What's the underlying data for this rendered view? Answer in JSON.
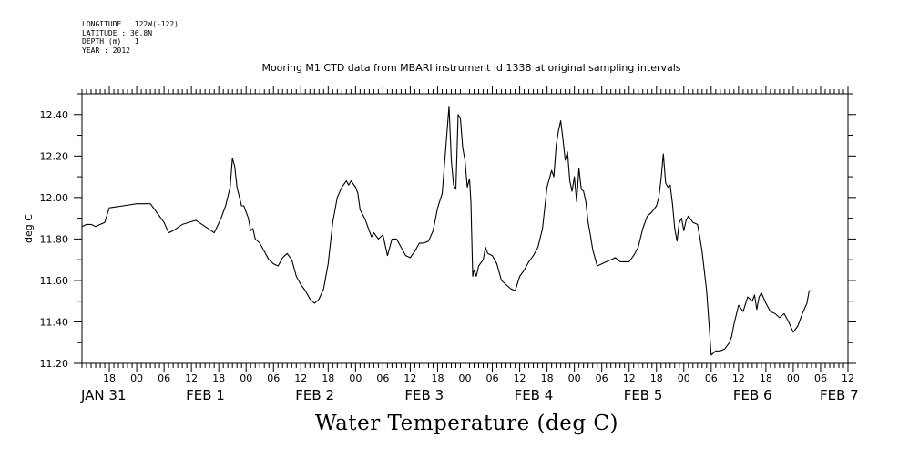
{
  "meta": {
    "longitude": "LONGITUDE : 122W(-122)",
    "latitude": "LATITUDE : 36.8N",
    "depth": "DEPTH (m) : 1",
    "year": "YEAR : 2012"
  },
  "chart_data": {
    "type": "line",
    "title": "Mooring M1 CTD data from MBARI instrument id 1338 at original sampling intervals",
    "xlabel": "",
    "ylabel": "deg C",
    "bottom_title": "Water Temperature (deg C)",
    "x_unit": "hours since JAN 31 12:00",
    "xlim": [
      0,
      168
    ],
    "ylim": [
      11.2,
      12.5
    ],
    "yticks": [
      "11.20",
      "11.40",
      "11.60",
      "11.80",
      "12.00",
      "12.20",
      "12.40"
    ],
    "ytick_values": [
      11.2,
      11.4,
      11.6,
      11.8,
      12.0,
      12.2,
      12.4
    ],
    "hour_ticks": [
      {
        "h": 6,
        "label": "18"
      },
      {
        "h": 12,
        "label": "00"
      },
      {
        "h": 18,
        "label": "06"
      },
      {
        "h": 24,
        "label": "12"
      },
      {
        "h": 30,
        "label": "18"
      },
      {
        "h": 36,
        "label": "00"
      },
      {
        "h": 42,
        "label": "06"
      },
      {
        "h": 48,
        "label": "12"
      },
      {
        "h": 54,
        "label": "18"
      },
      {
        "h": 60,
        "label": "00"
      },
      {
        "h": 66,
        "label": "06"
      },
      {
        "h": 72,
        "label": "12"
      },
      {
        "h": 78,
        "label": "18"
      },
      {
        "h": 84,
        "label": "00"
      },
      {
        "h": 90,
        "label": "06"
      },
      {
        "h": 96,
        "label": "12"
      },
      {
        "h": 102,
        "label": "18"
      },
      {
        "h": 108,
        "label": "00"
      },
      {
        "h": 114,
        "label": "06"
      },
      {
        "h": 120,
        "label": "12"
      },
      {
        "h": 126,
        "label": "18"
      },
      {
        "h": 132,
        "label": "00"
      },
      {
        "h": 138,
        "label": "06"
      },
      {
        "h": 144,
        "label": "12"
      },
      {
        "h": 150,
        "label": "18"
      },
      {
        "h": 156,
        "label": "00"
      },
      {
        "h": 162,
        "label": "06"
      },
      {
        "h": 168,
        "label": "12"
      }
    ],
    "day_labels": [
      {
        "h": 1,
        "label": "JAN 31"
      },
      {
        "h": 24,
        "label": "FEB  1"
      },
      {
        "h": 48,
        "label": "FEB  2"
      },
      {
        "h": 72,
        "label": "FEB  3"
      },
      {
        "h": 96,
        "label": "FEB  4"
      },
      {
        "h": 120,
        "label": "FEB  5"
      },
      {
        "h": 144,
        "label": "FEB  6"
      },
      {
        "h": 163,
        "label": "FEB  7"
      }
    ],
    "series": [
      {
        "values": [
          [
            0,
            11.86
          ],
          [
            1,
            11.87
          ],
          [
            2,
            11.87
          ],
          [
            3,
            11.86
          ],
          [
            4,
            11.87
          ],
          [
            5,
            11.88
          ],
          [
            6,
            11.95
          ],
          [
            9,
            11.96
          ],
          [
            12,
            11.97
          ],
          [
            15,
            11.97
          ],
          [
            16,
            11.94
          ],
          [
            18,
            11.88
          ],
          [
            19,
            11.83
          ],
          [
            20,
            11.84
          ],
          [
            22,
            11.87
          ],
          [
            25,
            11.89
          ],
          [
            27,
            11.86
          ],
          [
            29,
            11.83
          ],
          [
            30.5,
            11.9
          ],
          [
            31.5,
            11.96
          ],
          [
            32.5,
            12.05
          ],
          [
            33,
            12.19
          ],
          [
            33.5,
            12.15
          ],
          [
            34,
            12.05
          ],
          [
            35,
            11.96
          ],
          [
            35.5,
            11.96
          ],
          [
            36,
            11.93
          ],
          [
            36.5,
            11.9
          ],
          [
            37,
            11.84
          ],
          [
            37.5,
            11.85
          ],
          [
            38,
            11.8
          ],
          [
            39,
            11.78
          ],
          [
            40,
            11.74
          ],
          [
            41,
            11.7
          ],
          [
            42,
            11.68
          ],
          [
            43,
            11.67
          ],
          [
            44,
            11.71
          ],
          [
            45,
            11.73
          ],
          [
            46,
            11.7
          ],
          [
            47,
            11.62
          ],
          [
            48,
            11.58
          ],
          [
            49,
            11.55
          ],
          [
            50,
            11.51
          ],
          [
            51,
            11.49
          ],
          [
            52,
            11.51
          ],
          [
            53,
            11.56
          ],
          [
            54,
            11.68
          ],
          [
            55,
            11.88
          ],
          [
            56,
            12.0
          ],
          [
            57,
            12.05
          ],
          [
            58,
            12.08
          ],
          [
            58.5,
            12.06
          ],
          [
            59,
            12.08
          ],
          [
            60,
            12.05
          ],
          [
            60.5,
            12.02
          ],
          [
            61,
            11.94
          ],
          [
            62,
            11.9
          ],
          [
            63,
            11.84
          ],
          [
            63.5,
            11.81
          ],
          [
            64,
            11.83
          ],
          [
            65,
            11.8
          ],
          [
            66,
            11.82
          ],
          [
            66.5,
            11.77
          ],
          [
            67,
            11.72
          ],
          [
            68,
            11.8
          ],
          [
            69,
            11.8
          ],
          [
            70,
            11.76
          ],
          [
            71,
            11.72
          ],
          [
            72,
            11.71
          ],
          [
            73,
            11.74
          ],
          [
            74,
            11.78
          ],
          [
            75,
            11.78
          ],
          [
            76,
            11.79
          ],
          [
            77,
            11.84
          ],
          [
            78,
            11.95
          ],
          [
            79,
            12.02
          ],
          [
            80,
            12.3
          ],
          [
            80.5,
            12.44
          ],
          [
            81,
            12.18
          ],
          [
            81.5,
            12.06
          ],
          [
            82,
            12.04
          ],
          [
            82.5,
            12.4
          ],
          [
            83,
            12.38
          ],
          [
            83.5,
            12.24
          ],
          [
            84,
            12.18
          ],
          [
            84.5,
            12.05
          ],
          [
            85,
            12.09
          ],
          [
            85.3,
            11.98
          ],
          [
            85.7,
            11.62
          ],
          [
            86,
            11.65
          ],
          [
            86.5,
            11.62
          ],
          [
            87,
            11.67
          ],
          [
            88,
            11.7
          ],
          [
            88.5,
            11.76
          ],
          [
            89,
            11.73
          ],
          [
            90,
            11.72
          ],
          [
            91,
            11.68
          ],
          [
            92,
            11.6
          ],
          [
            93,
            11.58
          ],
          [
            94,
            11.56
          ],
          [
            95,
            11.55
          ],
          [
            96,
            11.62
          ],
          [
            97,
            11.65
          ],
          [
            98,
            11.69
          ],
          [
            99,
            11.72
          ],
          [
            100,
            11.76
          ],
          [
            101,
            11.85
          ],
          [
            102,
            12.05
          ],
          [
            103,
            12.13
          ],
          [
            103.5,
            12.1
          ],
          [
            104,
            12.25
          ],
          [
            104.5,
            12.32
          ],
          [
            105,
            12.37
          ],
          [
            105.5,
            12.28
          ],
          [
            106,
            12.18
          ],
          [
            106.5,
            12.22
          ],
          [
            107,
            12.08
          ],
          [
            107.5,
            12.03
          ],
          [
            108,
            12.1
          ],
          [
            108.5,
            11.98
          ],
          [
            109,
            12.14
          ],
          [
            109.5,
            12.04
          ],
          [
            110,
            12.03
          ],
          [
            110.5,
            11.98
          ],
          [
            111,
            11.88
          ],
          [
            111.5,
            11.82
          ],
          [
            112,
            11.75
          ],
          [
            113,
            11.67
          ],
          [
            114,
            11.68
          ],
          [
            115,
            11.69
          ],
          [
            116,
            11.7
          ],
          [
            117,
            11.71
          ],
          [
            118,
            11.69
          ],
          [
            119,
            11.69
          ],
          [
            120,
            11.69
          ],
          [
            121,
            11.72
          ],
          [
            122,
            11.76
          ],
          [
            123,
            11.85
          ],
          [
            124,
            11.91
          ],
          [
            125,
            11.93
          ],
          [
            126,
            11.96
          ],
          [
            126.5,
            12.0
          ],
          [
            127,
            12.09
          ],
          [
            127.5,
            12.21
          ],
          [
            128,
            12.07
          ],
          [
            128.5,
            12.05
          ],
          [
            129,
            12.06
          ],
          [
            129.5,
            11.97
          ],
          [
            130,
            11.85
          ],
          [
            130.5,
            11.79
          ],
          [
            131,
            11.88
          ],
          [
            131.5,
            11.9
          ],
          [
            132,
            11.84
          ],
          [
            132.5,
            11.89
          ],
          [
            133,
            11.91
          ],
          [
            134,
            11.88
          ],
          [
            135,
            11.87
          ],
          [
            135.5,
            11.81
          ],
          [
            136,
            11.74
          ],
          [
            137,
            11.55
          ],
          [
            137.5,
            11.4
          ],
          [
            138,
            11.24
          ],
          [
            139,
            11.26
          ],
          [
            140,
            11.26
          ],
          [
            141,
            11.27
          ],
          [
            142,
            11.3
          ],
          [
            142.5,
            11.33
          ],
          [
            143,
            11.39
          ],
          [
            144,
            11.48
          ],
          [
            145,
            11.45
          ],
          [
            146,
            11.52
          ],
          [
            147,
            11.5
          ],
          [
            147.5,
            11.53
          ],
          [
            148,
            11.46
          ],
          [
            148.5,
            11.52
          ],
          [
            149,
            11.54
          ],
          [
            150,
            11.49
          ],
          [
            151,
            11.45
          ],
          [
            152,
            11.44
          ],
          [
            153,
            11.42
          ],
          [
            154,
            11.44
          ],
          [
            155,
            11.4
          ],
          [
            156,
            11.35
          ],
          [
            157,
            11.38
          ],
          [
            158,
            11.44
          ],
          [
            159,
            11.49
          ],
          [
            159.5,
            11.55
          ],
          [
            160,
            11.55
          ]
        ]
      }
    ]
  }
}
